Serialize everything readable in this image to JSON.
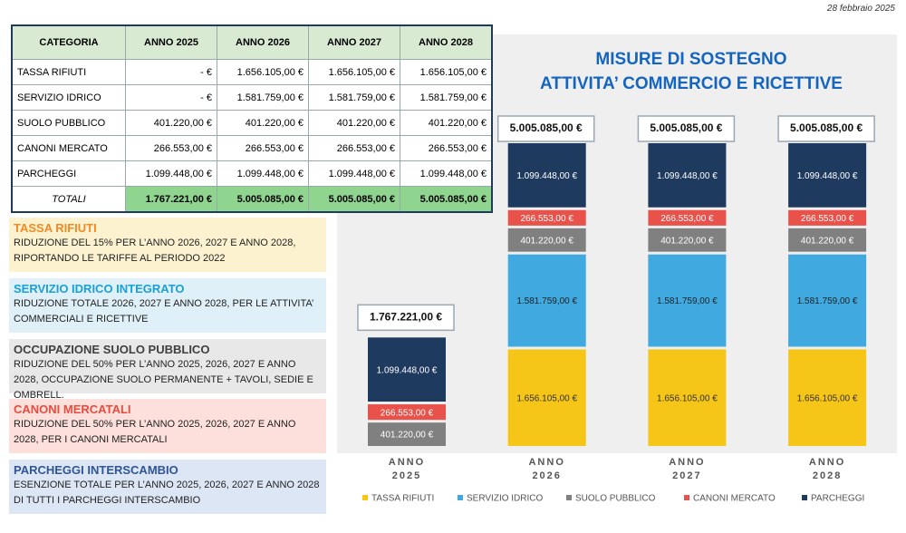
{
  "date": "28 febbraio 2025",
  "table": {
    "header": [
      "CATEGORIA",
      "ANNO 2025",
      "ANNO 2026",
      "ANNO 2027",
      "ANNO 2028"
    ],
    "rows": [
      [
        "TASSA RIFIUTI",
        "-   €",
        "1.656.105,00 €",
        "1.656.105,00 €",
        "1.656.105,00 €"
      ],
      [
        "SERVIZIO IDRICO",
        "-   €",
        "1.581.759,00 €",
        "1.581.759,00 €",
        "1.581.759,00 €"
      ],
      [
        "SUOLO PUBBLICO",
        "401.220,00 €",
        "401.220,00 €",
        "401.220,00 €",
        "401.220,00 €"
      ],
      [
        "CANONI MERCATO",
        "266.553,00 €",
        "266.553,00 €",
        "266.553,00 €",
        "266.553,00 €"
      ],
      [
        "PARCHEGGI",
        "1.099.448,00 €",
        "1.099.448,00 €",
        "1.099.448,00 €",
        "1.099.448,00 €"
      ]
    ],
    "totals": [
      "TOTALI",
      "1.767.221,00 €",
      "5.005.085,00 €",
      "5.005.085,00 €",
      "5.005.085,00 €"
    ]
  },
  "notes": [
    {
      "title": "TASSA RIFIUTI",
      "text": "RIDUZIONE DEL 15% PER L’ANNO 2026, 2027 E ANNO 2028, RIPORTANDO LE TARIFFE AL PERIODO 2022"
    },
    {
      "title": "SERVIZIO IDRICO INTEGRATO",
      "text": "RIDUZIONE TOTALE 2026, 2027 E ANNO 2028, PER LE ATTIVITA’ COMMERCIALI E RICETTIVE"
    },
    {
      "title": "OCCUPAZIONE SUOLO PUBBLICO",
      "text": "RIDUZIONE DEL 50% PER L’ANNO 2025, 2026, 2027 E ANNO 2028, OCCUPAZIONE SUOLO PERMANENTE + TAVOLI, SEDIE E OMBRELL."
    },
    {
      "title": "CANONI MERCATALI",
      "text": "RIDUZIONE DEL 50% PER L’ANNO 2025, 2026, 2027 E ANNO 2028, PER I CANONI MERCATALI"
    },
    {
      "title": "PARCHEGGI INTERSCAMBIO",
      "text": "ESENZIONE TOTALE PER L’ANNO 2025, 2026, 2027 E ANNO 2028 DI TUTTI I PARCHEGGI INTERSCAMBIO"
    }
  ],
  "chart_data": {
    "type": "stacked_bar",
    "title": "MISURE DI SOSTEGNO",
    "subtitle": "ATTIVITA’ COMMERCIO E RICETTIVE",
    "categories": [
      "ANNO 2025",
      "ANNO 2026",
      "ANNO 2027",
      "ANNO 2028"
    ],
    "series": [
      {
        "name": "TASSA RIFIUTI",
        "color": "#f5c518",
        "values": [
          0,
          1656105,
          1656105,
          1656105
        ],
        "value_labels": [
          null,
          "1.656.105,00 €",
          "1.656.105,00 €",
          "1.656.105,00 €"
        ]
      },
      {
        "name": "SERVIZIO IDRICO",
        "color": "#3fa9e0",
        "values": [
          0,
          1581759,
          1581759,
          1581759
        ],
        "value_labels": [
          null,
          "1.581.759,00 €",
          "1.581.759,00 €",
          "1.581.759,00 €"
        ]
      },
      {
        "name": "SUOLO PUBBLICO",
        "color": "#808080",
        "values": [
          401220,
          401220,
          401220,
          401220
        ],
        "value_labels": [
          "401.220,00 €",
          "401.220,00 €",
          "401.220,00 €",
          "401.220,00 €"
        ]
      },
      {
        "name": "CANONI MERCATO",
        "color": "#e8524a",
        "values": [
          266553,
          266553,
          266553,
          266553
        ],
        "value_labels": [
          "266.553,00 €",
          "266.553,00 €",
          "266.553,00 €",
          "266.553,00 €"
        ]
      },
      {
        "name": "PARCHEGGI",
        "color": "#1f3a5f",
        "values": [
          1099448,
          1099448,
          1099448,
          1099448
        ],
        "value_labels": [
          "1.099.448,00 €",
          "1.099.448,00 €",
          "1.099.448,00 €",
          "1.099.448,00 €"
        ]
      }
    ],
    "totals": [
      1767221,
      5005085,
      5005085,
      5005085
    ],
    "total_labels": [
      "1.767.221,00 €",
      "5.005.085,00 €",
      "5.005.085,00 €",
      "5.005.085,00 €"
    ]
  }
}
